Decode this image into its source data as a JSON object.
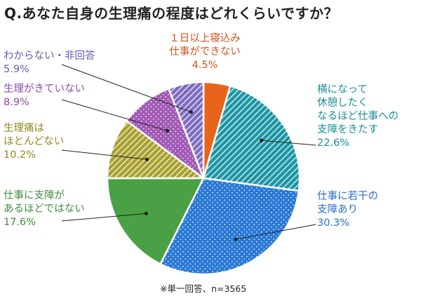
{
  "chart_data": {
    "type": "pie",
    "title": "Q.あなた自身の生理痛の程度はどれくらいですか？",
    "note": "※単一回答、n=3565",
    "slices": [
      {
        "lines": [
          "１日以上寝込み",
          "仕事ができない"
        ],
        "pct_label": "4.5%",
        "value": 4.5,
        "color": "#e8641b",
        "pattern": "solid",
        "pattern_color": "#e8641b",
        "label_color": "#d4531a"
      },
      {
        "lines": [
          "横になって",
          "休憩したく",
          "なるほど仕事への",
          "支障をきたす"
        ],
        "pct_label": "22.6%",
        "value": 22.6,
        "color": "#1b95a3",
        "pattern": "stripes",
        "pattern_color": "#ffffff",
        "label_color": "#1a8e99"
      },
      {
        "lines": [
          "仕事に若干の",
          "支障あり"
        ],
        "pct_label": "30.3%",
        "value": 30.3,
        "color": "#2a79d6",
        "pattern": "dots",
        "pattern_color": "#ffffff",
        "label_color": "#2a6fc9"
      },
      {
        "lines": [
          "仕事に支障が",
          "あるほどではない"
        ],
        "pct_label": "17.6%",
        "value": 17.6,
        "color": "#4aa145",
        "pattern": "solid",
        "pattern_color": "#4aa145",
        "label_color": "#3f8f3c"
      },
      {
        "lines": [
          "生理痛は",
          "ほとんどない"
        ],
        "pct_label": "10.2%",
        "value": 10.2,
        "color": "#a8a02c",
        "pattern": "stripes",
        "pattern_color": "#ffffff",
        "label_color": "#8f8a1f"
      },
      {
        "lines": [
          "生理がきていない"
        ],
        "pct_label": "8.9%",
        "value": 8.9,
        "color": "#a25ab6",
        "pattern": "dots",
        "pattern_color": "#ffffff",
        "label_color": "#9048a8"
      },
      {
        "lines": [
          "わからない・非回答"
        ],
        "pct_label": "5.9%",
        "value": 5.9,
        "color": "#7d6bbf",
        "pattern": "stripes",
        "pattern_color": "#ffffff",
        "label_color": "#6a57b3"
      }
    ]
  }
}
